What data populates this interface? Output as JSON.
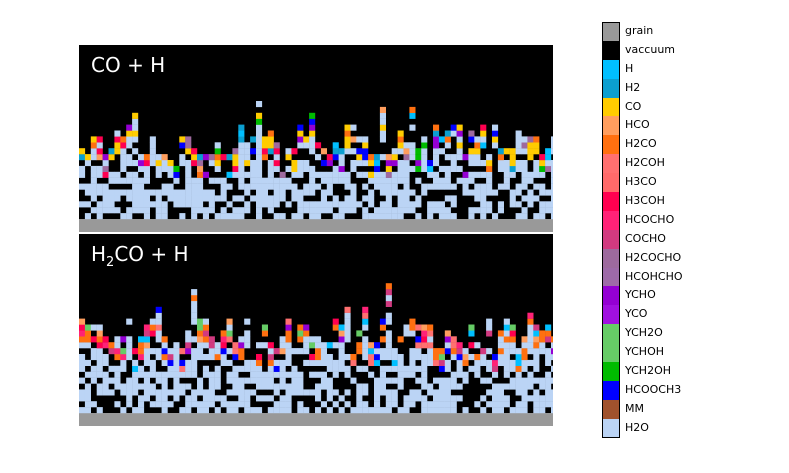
{
  "panels": [
    {
      "label_main": "CO + H"
    },
    {
      "label_pre": "H",
      "label_sub": "2",
      "label_post": "CO + H"
    }
  ],
  "legend": [
    {
      "label": "grain",
      "color": "#999999"
    },
    {
      "label": "vaccuum",
      "color": "#000000"
    },
    {
      "label": "H",
      "color": "#00BFFF"
    },
    {
      "label": "H2",
      "color": "#0B9FD0"
    },
    {
      "label": "CO",
      "color": "#FFCC00"
    },
    {
      "label": "HCO",
      "color": "#FF9E5E"
    },
    {
      "label": "H2CO",
      "color": "#FF7010"
    },
    {
      "label": "H2COH",
      "color": "#FF7070"
    },
    {
      "label": "H3CO",
      "color": "#FF6A6A"
    },
    {
      "label": "H3COH",
      "color": "#FF0050"
    },
    {
      "label": "HCOCHO",
      "color": "#FF2277"
    },
    {
      "label": "COCHO",
      "color": "#D13A80"
    },
    {
      "label": "H2COCHO",
      "color": "#9E6A9E"
    },
    {
      "label": "HCOHCHO",
      "color": "#9E6AA8"
    },
    {
      "label": "YCHO",
      "color": "#9400D3"
    },
    {
      "label": "YCO",
      "color": "#A010E0"
    },
    {
      "label": "YCH2O",
      "color": "#66CC66"
    },
    {
      "label": "YCHOH",
      "color": "#66CC66"
    },
    {
      "label": "YCH2OH",
      "color": "#00BB00"
    },
    {
      "label": "HCOOCH3",
      "color": "#0000FF"
    },
    {
      "label": "MM",
      "color": "#A0522D"
    },
    {
      "label": "H2O",
      "color": "#BBD4F5"
    }
  ]
}
